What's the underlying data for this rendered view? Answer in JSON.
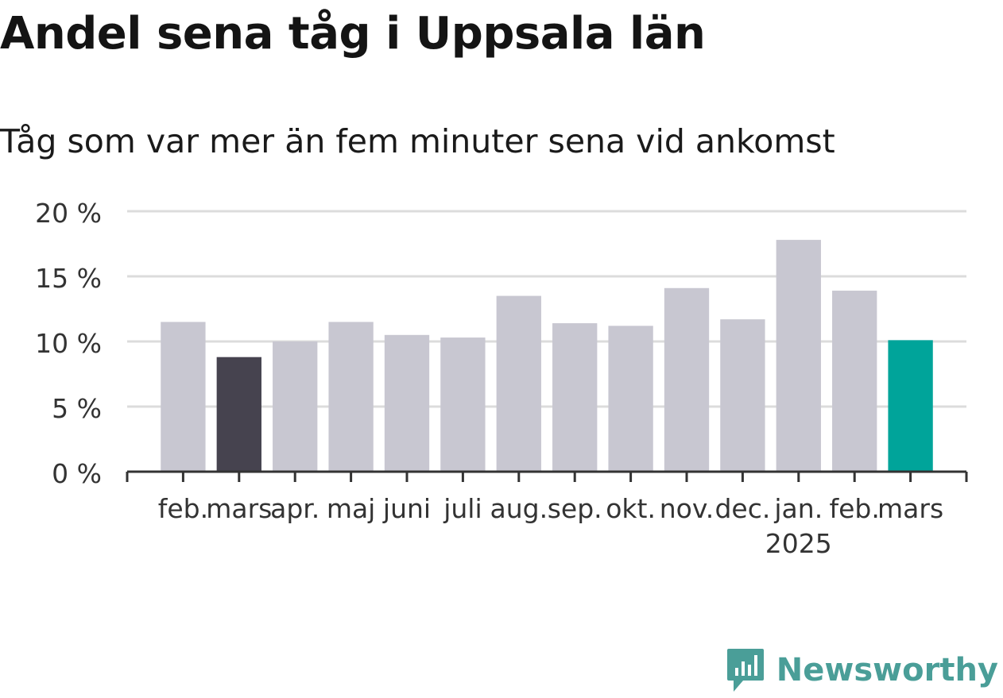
{
  "chart_data": {
    "type": "bar",
    "title": "Andel sena tåg i Uppsala län",
    "subtitle": "Tåg som var mer än fem minuter sena vid ankomst",
    "categories": [
      "feb.",
      "mars",
      "apr.",
      "maj",
      "juni",
      "juli",
      "aug.",
      "sep.",
      "okt.",
      "nov.",
      "dec.",
      "jan.",
      "feb.",
      "mars"
    ],
    "year_label": "2025",
    "values": [
      11.5,
      8.8,
      10.0,
      11.5,
      10.5,
      10.3,
      13.5,
      11.4,
      11.2,
      14.1,
      11.7,
      17.8,
      13.9,
      10.1
    ],
    "highlight": {
      "1": "#46434f",
      "13": "#00a49a"
    },
    "default_color": "#c8c7d1",
    "ylim": [
      0,
      20
    ],
    "yticks": [
      0,
      5,
      10,
      15,
      20
    ],
    "ytick_labels": [
      "0 %",
      "5 %",
      "10 %",
      "15 %",
      "20 %"
    ],
    "grid": true
  },
  "brand": {
    "name": "Newsworthy",
    "color": "#4a9e98"
  }
}
